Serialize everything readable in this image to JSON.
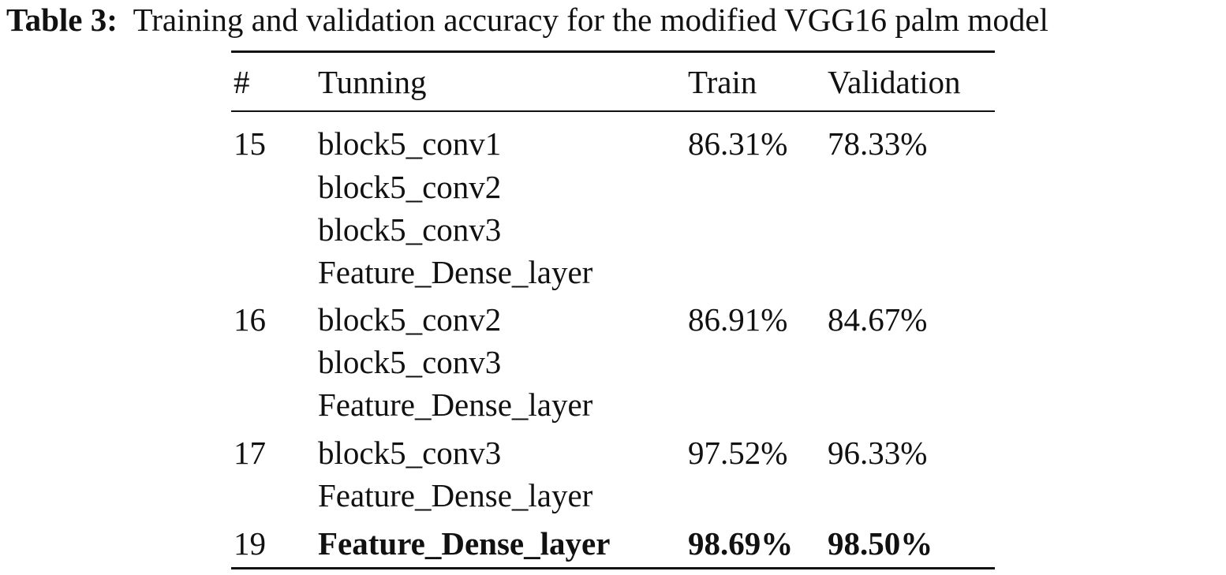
{
  "caption": {
    "label": "Table 3:",
    "text": "Training and validation accuracy for the modified VGG16 palm model"
  },
  "table": {
    "headers": {
      "num": "#",
      "tuning": "Tunning",
      "train": "Train",
      "validation": "Validation"
    },
    "rows": [
      {
        "num": "15",
        "tuning": [
          "block5_conv1",
          "block5_conv2",
          "block5_conv3",
          "Feature_Dense_layer"
        ],
        "train": "86.31%",
        "validation": "78.33%"
      },
      {
        "num": "16",
        "tuning": [
          "block5_conv2",
          "block5_conv3",
          "Feature_Dense_layer"
        ],
        "train": "86.91%",
        "validation": "84.67%"
      },
      {
        "num": "17",
        "tuning": [
          "block5_conv3",
          "Feature_Dense_layer"
        ],
        "train": "97.52%",
        "validation": "96.33%"
      },
      {
        "num": "19",
        "tuning": [
          "Feature_Dense_layer"
        ],
        "train": "98.69%",
        "validation": "98.50%",
        "bold": true
      }
    ]
  }
}
